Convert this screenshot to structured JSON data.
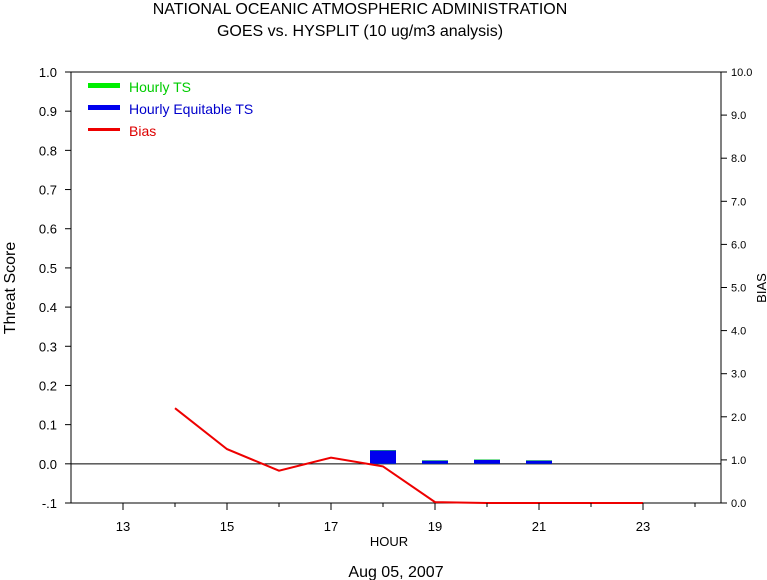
{
  "chart_data": {
    "type": "bar",
    "title": "NATIONAL OCEANIC ATMOSPHERIC ADMINISTRATION",
    "subtitle": "GOES vs. HYSPLIT  (10 ug/m3 analysis)",
    "xlabel": "HOUR",
    "date_label": "Aug 05, 2007",
    "ylabel_left": "Threat Score",
    "ylabel_right": "BIAS",
    "xlim": [
      12,
      24.5
    ],
    "ylim_left": [
      -0.1,
      1.0
    ],
    "ylim_right": [
      0.0,
      10.0
    ],
    "x_ticks": [
      13,
      15,
      17,
      19,
      21,
      23
    ],
    "y_ticks_left": [
      "1.0",
      "0.9",
      "0.8",
      "0.7",
      "0.6",
      "0.5",
      "0.4",
      "0.3",
      "0.2",
      "0.1",
      "0.0",
      "-.1"
    ],
    "y_ticks_right": [
      "10.0",
      "9.0",
      "8.0",
      "7.0",
      "6.0",
      "5.0",
      "4.0",
      "3.0",
      "2.0",
      "1.0",
      "0.0"
    ],
    "grid": false,
    "legend_position": "top-left",
    "colors": {
      "ts": "#00ee00",
      "ets": "#0000ee",
      "bias": "#ee0000",
      "zero_line": "#000000"
    },
    "series": [
      {
        "name": "Hourly TS",
        "kind": "bar",
        "x": [
          18,
          19,
          20,
          21
        ],
        "values": [
          0.035,
          0.009,
          0.011,
          0.009
        ]
      },
      {
        "name": "Hourly Equitable TS",
        "kind": "bar",
        "x": [
          18,
          19,
          20,
          21
        ],
        "values": [
          0.034,
          0.008,
          0.01,
          0.008
        ]
      },
      {
        "name": "Bias",
        "kind": "line",
        "axis": "right",
        "x": [
          14,
          15,
          16,
          17,
          18,
          19,
          20,
          21,
          22,
          23
        ],
        "values": [
          2.2,
          1.25,
          0.75,
          1.05,
          0.85,
          0.02,
          0.0,
          0.0,
          0.0,
          0.0
        ]
      }
    ]
  }
}
